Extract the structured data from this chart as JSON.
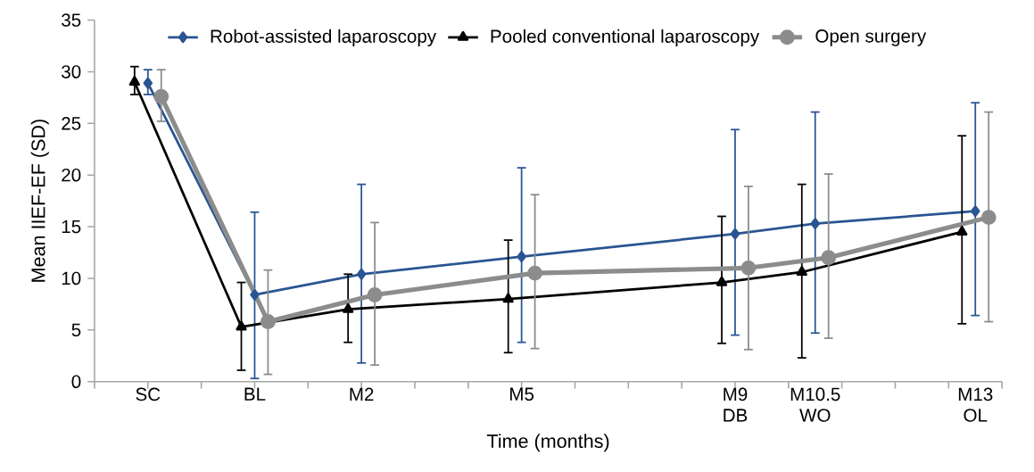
{
  "chart_data": {
    "type": "line",
    "xlabel": "Time (months)",
    "ylabel": "Mean IIEF-EF (SD)",
    "categories": [
      null,
      null,
      null,
      null,
      "SC",
      null,
      null,
      null,
      null,
      null,
      null,
      null,
      "BL",
      null,
      null,
      null,
      null,
      null,
      null,
      null,
      "M2",
      null,
      null,
      null,
      null,
      null,
      null,
      null,
      null,
      null,
      null,
      null,
      "M5",
      null,
      null,
      null,
      null,
      null,
      null,
      null,
      null,
      null,
      null,
      null,
      null,
      null,
      null,
      null,
      "M9 DB",
      null,
      null,
      null,
      null,
      null,
      "M10.5 WO",
      null,
      null,
      null,
      null,
      null,
      null,
      null,
      null,
      null,
      null,
      null,
      "M13 OL",
      null,
      null
    ],
    "ylim": [
      0,
      35
    ],
    "yticks": [
      0,
      5,
      10,
      15,
      20,
      25,
      30,
      35
    ],
    "legend": "top",
    "grid": false,
    "line_style": "solid",
    "series": [
      {
        "name": "Robot-assisted laparoscopy",
        "color": "#2a5592",
        "marker": "diamond",
        "values": [
          null,
          null,
          null,
          null,
          28.9,
          null,
          null,
          null,
          null,
          null,
          null,
          null,
          8.4,
          null,
          null,
          null,
          null,
          null,
          null,
          null,
          10.4,
          null,
          null,
          null,
          null,
          null,
          null,
          null,
          null,
          null,
          null,
          null,
          12.1,
          null,
          null,
          null,
          null,
          null,
          null,
          null,
          null,
          null,
          null,
          null,
          null,
          null,
          null,
          null,
          14.3,
          null,
          null,
          null,
          null,
          null,
          15.3,
          null,
          null,
          null,
          null,
          null,
          null,
          null,
          null,
          null,
          null,
          null,
          16.5,
          null,
          null
        ],
        "errors": [
          null,
          null,
          null,
          null,
          [
            27.8,
            30.2
          ],
          null,
          null,
          null,
          null,
          null,
          null,
          null,
          [
            0.3,
            16.4
          ],
          null,
          null,
          null,
          null,
          null,
          null,
          null,
          [
            1.8,
            19.1
          ],
          null,
          null,
          null,
          null,
          null,
          null,
          null,
          null,
          null,
          null,
          null,
          [
            3.8,
            20.7
          ],
          null,
          null,
          null,
          null,
          null,
          null,
          null,
          null,
          null,
          null,
          null,
          null,
          null,
          null,
          null,
          [
            4.5,
            24.4
          ],
          null,
          null,
          null,
          null,
          null,
          [
            4.7,
            26.1
          ],
          null,
          null,
          null,
          null,
          null,
          null,
          null,
          null,
          null,
          null,
          null,
          [
            6.4,
            27.0
          ],
          null,
          null
        ]
      },
      {
        "name": "Pooled conventional laparoscopy",
        "color": "#000000",
        "marker": "triangle",
        "values": [
          null,
          null,
          null,
          29.0,
          null,
          null,
          null,
          null,
          null,
          null,
          null,
          5.3,
          null,
          null,
          null,
          null,
          null,
          null,
          null,
          7.0,
          null,
          null,
          null,
          null,
          null,
          null,
          null,
          null,
          null,
          null,
          null,
          8.0,
          null,
          null,
          null,
          null,
          null,
          null,
          null,
          null,
          null,
          null,
          null,
          null,
          null,
          null,
          null,
          9.6,
          null,
          null,
          null,
          null,
          null,
          10.6,
          null,
          null,
          null,
          null,
          null,
          null,
          null,
          null,
          null,
          null,
          null,
          14.5,
          null,
          null,
          null
        ],
        "errors": [
          null,
          null,
          null,
          [
            27.8,
            30.5
          ],
          null,
          null,
          null,
          null,
          null,
          null,
          null,
          [
            1.1,
            9.6
          ],
          null,
          null,
          null,
          null,
          null,
          null,
          null,
          [
            3.8,
            10.4
          ],
          null,
          null,
          null,
          null,
          null,
          null,
          null,
          null,
          null,
          null,
          null,
          [
            2.8,
            13.7
          ],
          null,
          null,
          null,
          null,
          null,
          null,
          null,
          null,
          null,
          null,
          null,
          null,
          null,
          null,
          null,
          [
            3.7,
            16.0
          ],
          null,
          null,
          null,
          null,
          null,
          [
            2.3,
            19.1
          ],
          null,
          null,
          null,
          null,
          null,
          null,
          null,
          null,
          null,
          null,
          null,
          [
            5.6,
            23.8
          ],
          null,
          null,
          null
        ]
      },
      {
        "name": "Open surgery",
        "color": "#8c8c8c",
        "marker": "circle",
        "values": [
          null,
          null,
          null,
          null,
          null,
          27.6,
          null,
          null,
          null,
          null,
          null,
          null,
          null,
          5.8,
          null,
          null,
          null,
          null,
          null,
          null,
          null,
          8.4,
          null,
          null,
          null,
          null,
          null,
          null,
          null,
          null,
          null,
          null,
          null,
          10.5,
          null,
          null,
          null,
          null,
          null,
          null,
          null,
          null,
          null,
          null,
          null,
          null,
          null,
          null,
          null,
          11.0,
          null,
          null,
          null,
          null,
          null,
          12.0,
          null,
          null,
          null,
          null,
          null,
          null,
          null,
          null,
          null,
          null,
          null,
          15.9,
          null
        ],
        "errors": [
          null,
          null,
          null,
          null,
          null,
          [
            25.2,
            30.2
          ],
          null,
          null,
          null,
          null,
          null,
          null,
          null,
          [
            0.7,
            10.8
          ],
          null,
          null,
          null,
          null,
          null,
          null,
          null,
          [
            1.6,
            15.4
          ],
          null,
          null,
          null,
          null,
          null,
          null,
          null,
          null,
          null,
          null,
          null,
          [
            3.2,
            18.1
          ],
          null,
          null,
          null,
          null,
          null,
          null,
          null,
          null,
          null,
          null,
          null,
          null,
          null,
          null,
          null,
          [
            3.1,
            18.9
          ],
          null,
          null,
          null,
          null,
          null,
          [
            4.2,
            20.1
          ],
          null,
          null,
          null,
          null,
          null,
          null,
          null,
          null,
          null,
          null,
          null,
          [
            5.8,
            26.1
          ],
          null
        ]
      }
    ]
  }
}
